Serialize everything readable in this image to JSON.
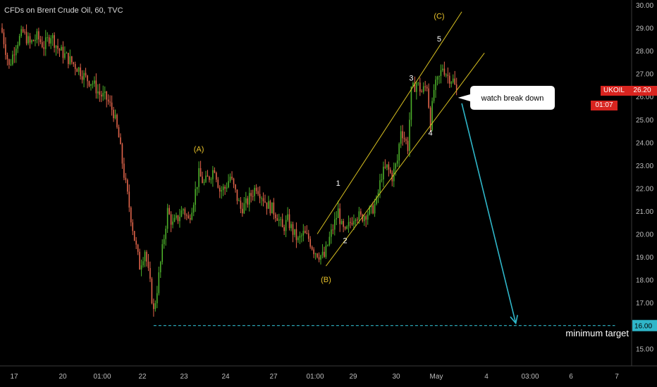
{
  "header": {
    "instrument": "CFDs on Brent Crude Oil",
    "interval": "60",
    "source": "TVC"
  },
  "ticker": {
    "symbol": "UKOIL",
    "price": "26.20",
    "countdown": "01:07"
  },
  "colors": {
    "background": "#000000",
    "up_candle": "#4caf2a",
    "down_candle": "#e0644a",
    "channel": "#d8c021",
    "arrow": "#2fb6c9",
    "target_line": "#2fb6c9",
    "price_tag": "#d8241f"
  },
  "annotations": {
    "callout": "watch break down",
    "target_label": "minimum target"
  },
  "chart_data": {
    "type": "candlestick",
    "title": "CFDs on Brent Crude Oil, 60, TVC",
    "ylim": [
      14.6,
      30.1
    ],
    "y_ticks": [
      "30.00",
      "29.00",
      "28.00",
      "27.00",
      "26.00",
      "25.00",
      "24.00",
      "23.00",
      "22.00",
      "21.00",
      "20.00",
      "19.00",
      "18.00",
      "17.00",
      "16.00",
      "15.00"
    ],
    "x_ticks": [
      "17",
      "20",
      "01:00",
      "22",
      "23",
      "24",
      "27",
      "01:00",
      "29",
      "30",
      "May",
      "4",
      "03:00",
      "6",
      "7"
    ],
    "last_price": 26.2,
    "target_level": 16.0,
    "target_level_label": "16.00",
    "wave_labels": [
      {
        "text": "(A)",
        "bar": 113,
        "y": 23.6
      },
      {
        "text": "(B)",
        "bar": 186,
        "y": 17.9
      },
      {
        "text": "(C)",
        "bar": 251,
        "y": 29.4
      },
      {
        "text": "1",
        "bar": 193,
        "y": 22.1
      },
      {
        "text": "2",
        "bar": 197,
        "y": 19.6
      },
      {
        "text": "3",
        "bar": 235,
        "y": 26.7
      },
      {
        "text": "4",
        "bar": 246,
        "y": 24.3
      },
      {
        "text": "5",
        "bar": 251,
        "y": 28.4
      }
    ],
    "channel": {
      "upper": {
        "from": {
          "bar": 181,
          "y": 20.0
        },
        "to": {
          "bar": 264,
          "y": 29.7
        }
      },
      "lower": {
        "from": {
          "bar": 186,
          "y": 18.6
        },
        "to": {
          "bar": 277,
          "y": 27.9
        }
      }
    },
    "projection": {
      "from": {
        "bar": 264,
        "y": 25.7
      },
      "to": {
        "bar": 295,
        "y": 16.1
      }
    },
    "target_line": {
      "from_bar": 87,
      "to_bar": 352,
      "y": 16.0
    },
    "close_path": [
      {
        "bar": 0,
        "close": 28.8
      },
      {
        "bar": 4,
        "close": 27.3
      },
      {
        "bar": 8,
        "close": 28.3
      },
      {
        "bar": 12,
        "close": 28.8
      },
      {
        "bar": 16,
        "close": 28.3
      },
      {
        "bar": 20,
        "close": 28.6
      },
      {
        "bar": 24,
        "close": 28.2
      },
      {
        "bar": 28,
        "close": 28.7
      },
      {
        "bar": 32,
        "close": 28.1
      },
      {
        "bar": 36,
        "close": 27.8
      },
      {
        "bar": 40,
        "close": 27.5
      },
      {
        "bar": 44,
        "close": 27.2
      },
      {
        "bar": 48,
        "close": 26.8
      },
      {
        "bar": 52,
        "close": 26.6
      },
      {
        "bar": 56,
        "close": 26.1
      },
      {
        "bar": 60,
        "close": 25.9
      },
      {
        "bar": 64,
        "close": 25.3
      },
      {
        "bar": 67,
        "close": 24.2
      },
      {
        "bar": 70,
        "close": 22.6
      },
      {
        "bar": 73,
        "close": 21.2
      },
      {
        "bar": 76,
        "close": 19.8
      },
      {
        "bar": 79,
        "close": 18.6
      },
      {
        "bar": 82,
        "close": 19.3
      },
      {
        "bar": 85,
        "close": 17.8
      },
      {
        "bar": 87,
        "close": 16.6
      },
      {
        "bar": 89,
        "close": 17.6
      },
      {
        "bar": 92,
        "close": 19.3
      },
      {
        "bar": 95,
        "close": 21.0
      },
      {
        "bar": 98,
        "close": 20.4
      },
      {
        "bar": 101,
        "close": 20.7
      },
      {
        "bar": 104,
        "close": 21.1
      },
      {
        "bar": 107,
        "close": 20.6
      },
      {
        "bar": 110,
        "close": 21.5
      },
      {
        "bar": 113,
        "close": 22.6
      },
      {
        "bar": 116,
        "close": 22.2
      },
      {
        "bar": 119,
        "close": 22.5
      },
      {
        "bar": 122,
        "close": 22.9
      },
      {
        "bar": 125,
        "close": 21.9
      },
      {
        "bar": 128,
        "close": 22.0
      },
      {
        "bar": 131,
        "close": 22.5
      },
      {
        "bar": 134,
        "close": 21.8
      },
      {
        "bar": 137,
        "close": 21.1
      },
      {
        "bar": 140,
        "close": 21.3
      },
      {
        "bar": 143,
        "close": 21.7
      },
      {
        "bar": 146,
        "close": 22.1
      },
      {
        "bar": 149,
        "close": 21.7
      },
      {
        "bar": 152,
        "close": 21.3
      },
      {
        "bar": 155,
        "close": 21.1
      },
      {
        "bar": 158,
        "close": 20.8
      },
      {
        "bar": 161,
        "close": 20.2
      },
      {
        "bar": 164,
        "close": 20.6
      },
      {
        "bar": 167,
        "close": 20.1
      },
      {
        "bar": 170,
        "close": 19.7
      },
      {
        "bar": 173,
        "close": 20.0
      },
      {
        "bar": 176,
        "close": 19.8
      },
      {
        "bar": 179,
        "close": 19.3
      },
      {
        "bar": 182,
        "close": 19.1
      },
      {
        "bar": 185,
        "close": 19.0
      },
      {
        "bar": 188,
        "close": 19.8
      },
      {
        "bar": 191,
        "close": 20.5
      },
      {
        "bar": 193,
        "close": 21.0
      },
      {
        "bar": 195,
        "close": 20.3
      },
      {
        "bar": 197,
        "close": 20.0
      },
      {
        "bar": 200,
        "close": 20.5
      },
      {
        "bar": 203,
        "close": 20.9
      },
      {
        "bar": 206,
        "close": 20.7
      },
      {
        "bar": 209,
        "close": 20.9
      },
      {
        "bar": 212,
        "close": 21.0
      },
      {
        "bar": 215,
        "close": 21.4
      },
      {
        "bar": 218,
        "close": 22.6
      },
      {
        "bar": 221,
        "close": 22.9
      },
      {
        "bar": 224,
        "close": 22.5
      },
      {
        "bar": 227,
        "close": 23.2
      },
      {
        "bar": 229,
        "close": 24.6
      },
      {
        "bar": 231,
        "close": 24.2
      },
      {
        "bar": 233,
        "close": 23.8
      },
      {
        "bar": 235,
        "close": 26.2
      },
      {
        "bar": 238,
        "close": 26.6
      },
      {
        "bar": 241,
        "close": 26.2
      },
      {
        "bar": 244,
        "close": 26.5
      },
      {
        "bar": 246,
        "close": 24.8
      },
      {
        "bar": 248,
        "close": 26.3
      },
      {
        "bar": 251,
        "close": 26.8
      },
      {
        "bar": 253,
        "close": 27.3
      },
      {
        "bar": 256,
        "close": 26.9
      },
      {
        "bar": 259,
        "close": 26.7
      },
      {
        "bar": 261,
        "close": 26.2
      }
    ]
  }
}
